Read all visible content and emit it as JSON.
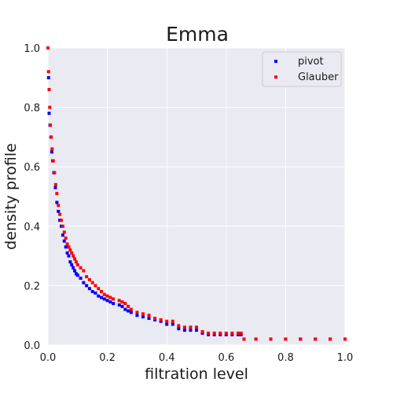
{
  "chart_data": {
    "type": "scatter",
    "title": "Emma",
    "xlabel": "filtration level",
    "ylabel": "density profile",
    "xlim": [
      0,
      1
    ],
    "ylim": [
      0,
      1
    ],
    "xticks": [
      "0.0",
      "0.2",
      "0.4",
      "0.6",
      "0.8",
      "1.0"
    ],
    "yticks": [
      "0.0",
      "0.2",
      "0.4",
      "0.6",
      "0.8",
      "1.0"
    ],
    "grid": true,
    "background": "#eaeaf2",
    "legend_position": "top-right",
    "series": [
      {
        "name": "pivot",
        "color": "#0000ff",
        "points": [
          [
            0.0,
            1.0
          ],
          [
            0.002,
            0.9
          ],
          [
            0.004,
            0.78
          ],
          [
            0.007,
            0.74
          ],
          [
            0.01,
            0.7
          ],
          [
            0.013,
            0.65
          ],
          [
            0.016,
            0.62
          ],
          [
            0.02,
            0.58
          ],
          [
            0.025,
            0.53
          ],
          [
            0.03,
            0.48
          ],
          [
            0.035,
            0.45
          ],
          [
            0.04,
            0.42
          ],
          [
            0.045,
            0.4
          ],
          [
            0.05,
            0.37
          ],
          [
            0.055,
            0.35
          ],
          [
            0.06,
            0.33
          ],
          [
            0.065,
            0.31
          ],
          [
            0.07,
            0.3
          ],
          [
            0.075,
            0.28
          ],
          [
            0.08,
            0.27
          ],
          [
            0.085,
            0.26
          ],
          [
            0.09,
            0.25
          ],
          [
            0.095,
            0.24
          ],
          [
            0.1,
            0.235
          ],
          [
            0.11,
            0.225
          ],
          [
            0.12,
            0.21
          ],
          [
            0.13,
            0.2
          ],
          [
            0.14,
            0.19
          ],
          [
            0.15,
            0.18
          ],
          [
            0.16,
            0.175
          ],
          [
            0.17,
            0.165
          ],
          [
            0.18,
            0.16
          ],
          [
            0.19,
            0.155
          ],
          [
            0.2,
            0.15
          ],
          [
            0.21,
            0.145
          ],
          [
            0.22,
            0.14
          ],
          [
            0.24,
            0.135
          ],
          [
            0.25,
            0.13
          ],
          [
            0.26,
            0.12
          ],
          [
            0.27,
            0.115
          ],
          [
            0.28,
            0.11
          ],
          [
            0.3,
            0.1
          ],
          [
            0.32,
            0.095
          ],
          [
            0.34,
            0.09
          ],
          [
            0.36,
            0.085
          ],
          [
            0.38,
            0.08
          ],
          [
            0.4,
            0.07
          ],
          [
            0.42,
            0.07
          ],
          [
            0.44,
            0.055
          ],
          [
            0.46,
            0.05
          ],
          [
            0.48,
            0.05
          ],
          [
            0.5,
            0.05
          ],
          [
            0.52,
            0.04
          ],
          [
            0.54,
            0.035
          ],
          [
            0.56,
            0.035
          ],
          [
            0.58,
            0.035
          ],
          [
            0.6,
            0.035
          ],
          [
            0.62,
            0.035
          ],
          [
            0.64,
            0.035
          ],
          [
            0.65,
            0.035
          ],
          [
            0.66,
            0.02
          ],
          [
            0.7,
            0.02
          ],
          [
            0.75,
            0.02
          ],
          [
            0.8,
            0.02
          ],
          [
            0.85,
            0.02
          ],
          [
            0.9,
            0.02
          ],
          [
            0.95,
            0.02
          ],
          [
            1.0,
            0.02
          ]
        ]
      },
      {
        "name": "Glauber",
        "color": "#ff0000",
        "points": [
          [
            0.0,
            1.0
          ],
          [
            0.002,
            0.92
          ],
          [
            0.004,
            0.86
          ],
          [
            0.006,
            0.8
          ],
          [
            0.008,
            0.74
          ],
          [
            0.011,
            0.7
          ],
          [
            0.014,
            0.66
          ],
          [
            0.018,
            0.62
          ],
          [
            0.022,
            0.58
          ],
          [
            0.026,
            0.54
          ],
          [
            0.03,
            0.51
          ],
          [
            0.035,
            0.47
          ],
          [
            0.04,
            0.44
          ],
          [
            0.045,
            0.42
          ],
          [
            0.05,
            0.4
          ],
          [
            0.055,
            0.38
          ],
          [
            0.06,
            0.36
          ],
          [
            0.065,
            0.34
          ],
          [
            0.07,
            0.33
          ],
          [
            0.075,
            0.32
          ],
          [
            0.08,
            0.31
          ],
          [
            0.085,
            0.3
          ],
          [
            0.09,
            0.29
          ],
          [
            0.095,
            0.28
          ],
          [
            0.1,
            0.27
          ],
          [
            0.11,
            0.26
          ],
          [
            0.12,
            0.25
          ],
          [
            0.13,
            0.23
          ],
          [
            0.14,
            0.22
          ],
          [
            0.15,
            0.21
          ],
          [
            0.16,
            0.2
          ],
          [
            0.17,
            0.19
          ],
          [
            0.18,
            0.18
          ],
          [
            0.19,
            0.17
          ],
          [
            0.2,
            0.165
          ],
          [
            0.21,
            0.16
          ],
          [
            0.22,
            0.155
          ],
          [
            0.24,
            0.15
          ],
          [
            0.25,
            0.145
          ],
          [
            0.26,
            0.14
          ],
          [
            0.27,
            0.13
          ],
          [
            0.28,
            0.12
          ],
          [
            0.3,
            0.11
          ],
          [
            0.32,
            0.105
          ],
          [
            0.34,
            0.1
          ],
          [
            0.36,
            0.09
          ],
          [
            0.38,
            0.085
          ],
          [
            0.4,
            0.08
          ],
          [
            0.42,
            0.08
          ],
          [
            0.44,
            0.065
          ],
          [
            0.46,
            0.06
          ],
          [
            0.48,
            0.06
          ],
          [
            0.5,
            0.06
          ],
          [
            0.52,
            0.045
          ],
          [
            0.54,
            0.04
          ],
          [
            0.56,
            0.04
          ],
          [
            0.58,
            0.04
          ],
          [
            0.6,
            0.04
          ],
          [
            0.62,
            0.04
          ],
          [
            0.64,
            0.04
          ],
          [
            0.65,
            0.04
          ],
          [
            0.66,
            0.02
          ],
          [
            0.7,
            0.02
          ],
          [
            0.75,
            0.02
          ],
          [
            0.8,
            0.02
          ],
          [
            0.85,
            0.02
          ],
          [
            0.9,
            0.02
          ],
          [
            0.95,
            0.02
          ],
          [
            1.0,
            0.02
          ]
        ]
      }
    ]
  }
}
